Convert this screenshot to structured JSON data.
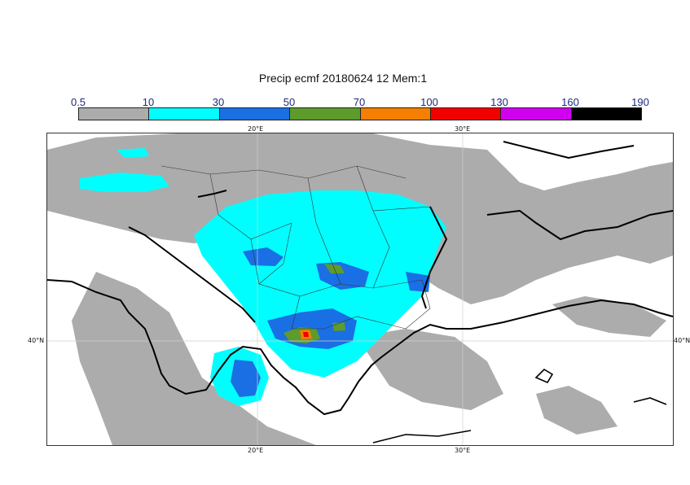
{
  "title": "Precip ecmf 20180624 12 Mem:1",
  "legend": {
    "labels": [
      "0.5",
      "10",
      "30",
      "50",
      "70",
      "100",
      "130",
      "160",
      "190"
    ],
    "colors": [
      "#acacac",
      "#00fefe",
      "#1a6fe4",
      "#5d9b2c",
      "#f57f00",
      "#f20000",
      "#d200f0",
      "#000000"
    ]
  },
  "axes": {
    "lon_top": [
      "20°E",
      "30°E"
    ],
    "lon_bottom": [
      "20°E",
      "30°E"
    ],
    "lat_left": "40°N",
    "lat_right": "40°N"
  }
}
